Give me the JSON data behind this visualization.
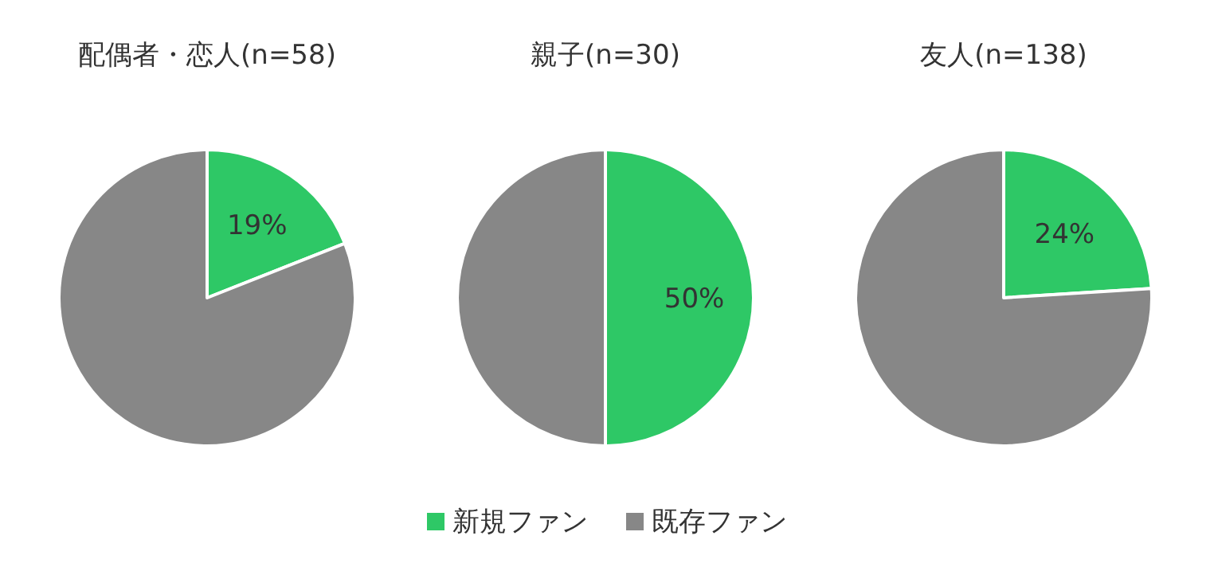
{
  "chart_data": [
    {
      "type": "pie",
      "title": "配偶者・恋人(n=58)",
      "categories": [
        null,
        null
      ],
      "values": [
        19,
        81
      ],
      "colors": [
        "#2ec866",
        "#878787"
      ],
      "value_labels": [
        "19%",
        null
      ]
    },
    {
      "type": "pie",
      "title": "親子(n=30)",
      "categories": [
        "新規ファン",
        "既存ファン"
      ],
      "values": [
        50,
        50
      ],
      "colors": [
        "#2ec866",
        "#878787"
      ],
      "value_labels": [
        "50%",
        null
      ],
      "legend": "bottom"
    },
    {
      "type": "pie",
      "title": "友人(n=138)",
      "categories": [
        null,
        null
      ],
      "values": [
        24,
        76
      ],
      "colors": [
        "#2ec866",
        "#878787"
      ],
      "value_labels": [
        "24%",
        null
      ]
    }
  ]
}
